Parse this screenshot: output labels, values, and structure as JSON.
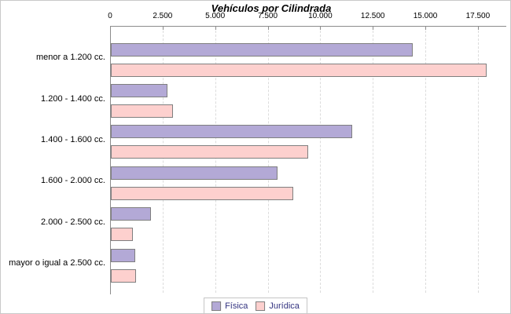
{
  "chart_data": {
    "type": "bar",
    "orientation": "horizontal",
    "title": "Vehículos por Cilindrada",
    "categories": [
      "menor a 1.200 cc.",
      "1.200 - 1.400 cc.",
      "1.400 - 1.600 cc.",
      "1.600 - 2.000 cc.",
      "2.000 - 2.500 cc.",
      "mayor o igual a 2.500 cc."
    ],
    "series": [
      {
        "name": "Física",
        "color": "#b3a9d6",
        "border_color": "#7f7f7f",
        "values": [
          14330,
          2650,
          11440,
          7910,
          1860,
          1120
        ]
      },
      {
        "name": "Jurídica",
        "color": "#fdd0ce",
        "border_color": "#7f7f7f",
        "values": [
          17840,
          2930,
          9350,
          8640,
          1010,
          1170
        ]
      }
    ],
    "x_axis": {
      "position": "top",
      "ticks": [
        0,
        2500,
        5000,
        7500,
        10000,
        12500,
        15000,
        17500
      ],
      "tick_labels": [
        "0",
        "2.500",
        "5.000",
        "7.500",
        "10.000",
        "12.500",
        "15.000",
        "17.500"
      ],
      "xlim": [
        0,
        18850
      ],
      "gridlines": "dashed-vertical"
    },
    "legend": {
      "position": "bottom-center",
      "text_color": "#333380"
    },
    "colors": {
      "axis_line": "#8c8c8c",
      "gridline": "#dcdcdc",
      "title_text": "#000000",
      "tick_text": "#000000",
      "category_text": "#000000"
    }
  }
}
